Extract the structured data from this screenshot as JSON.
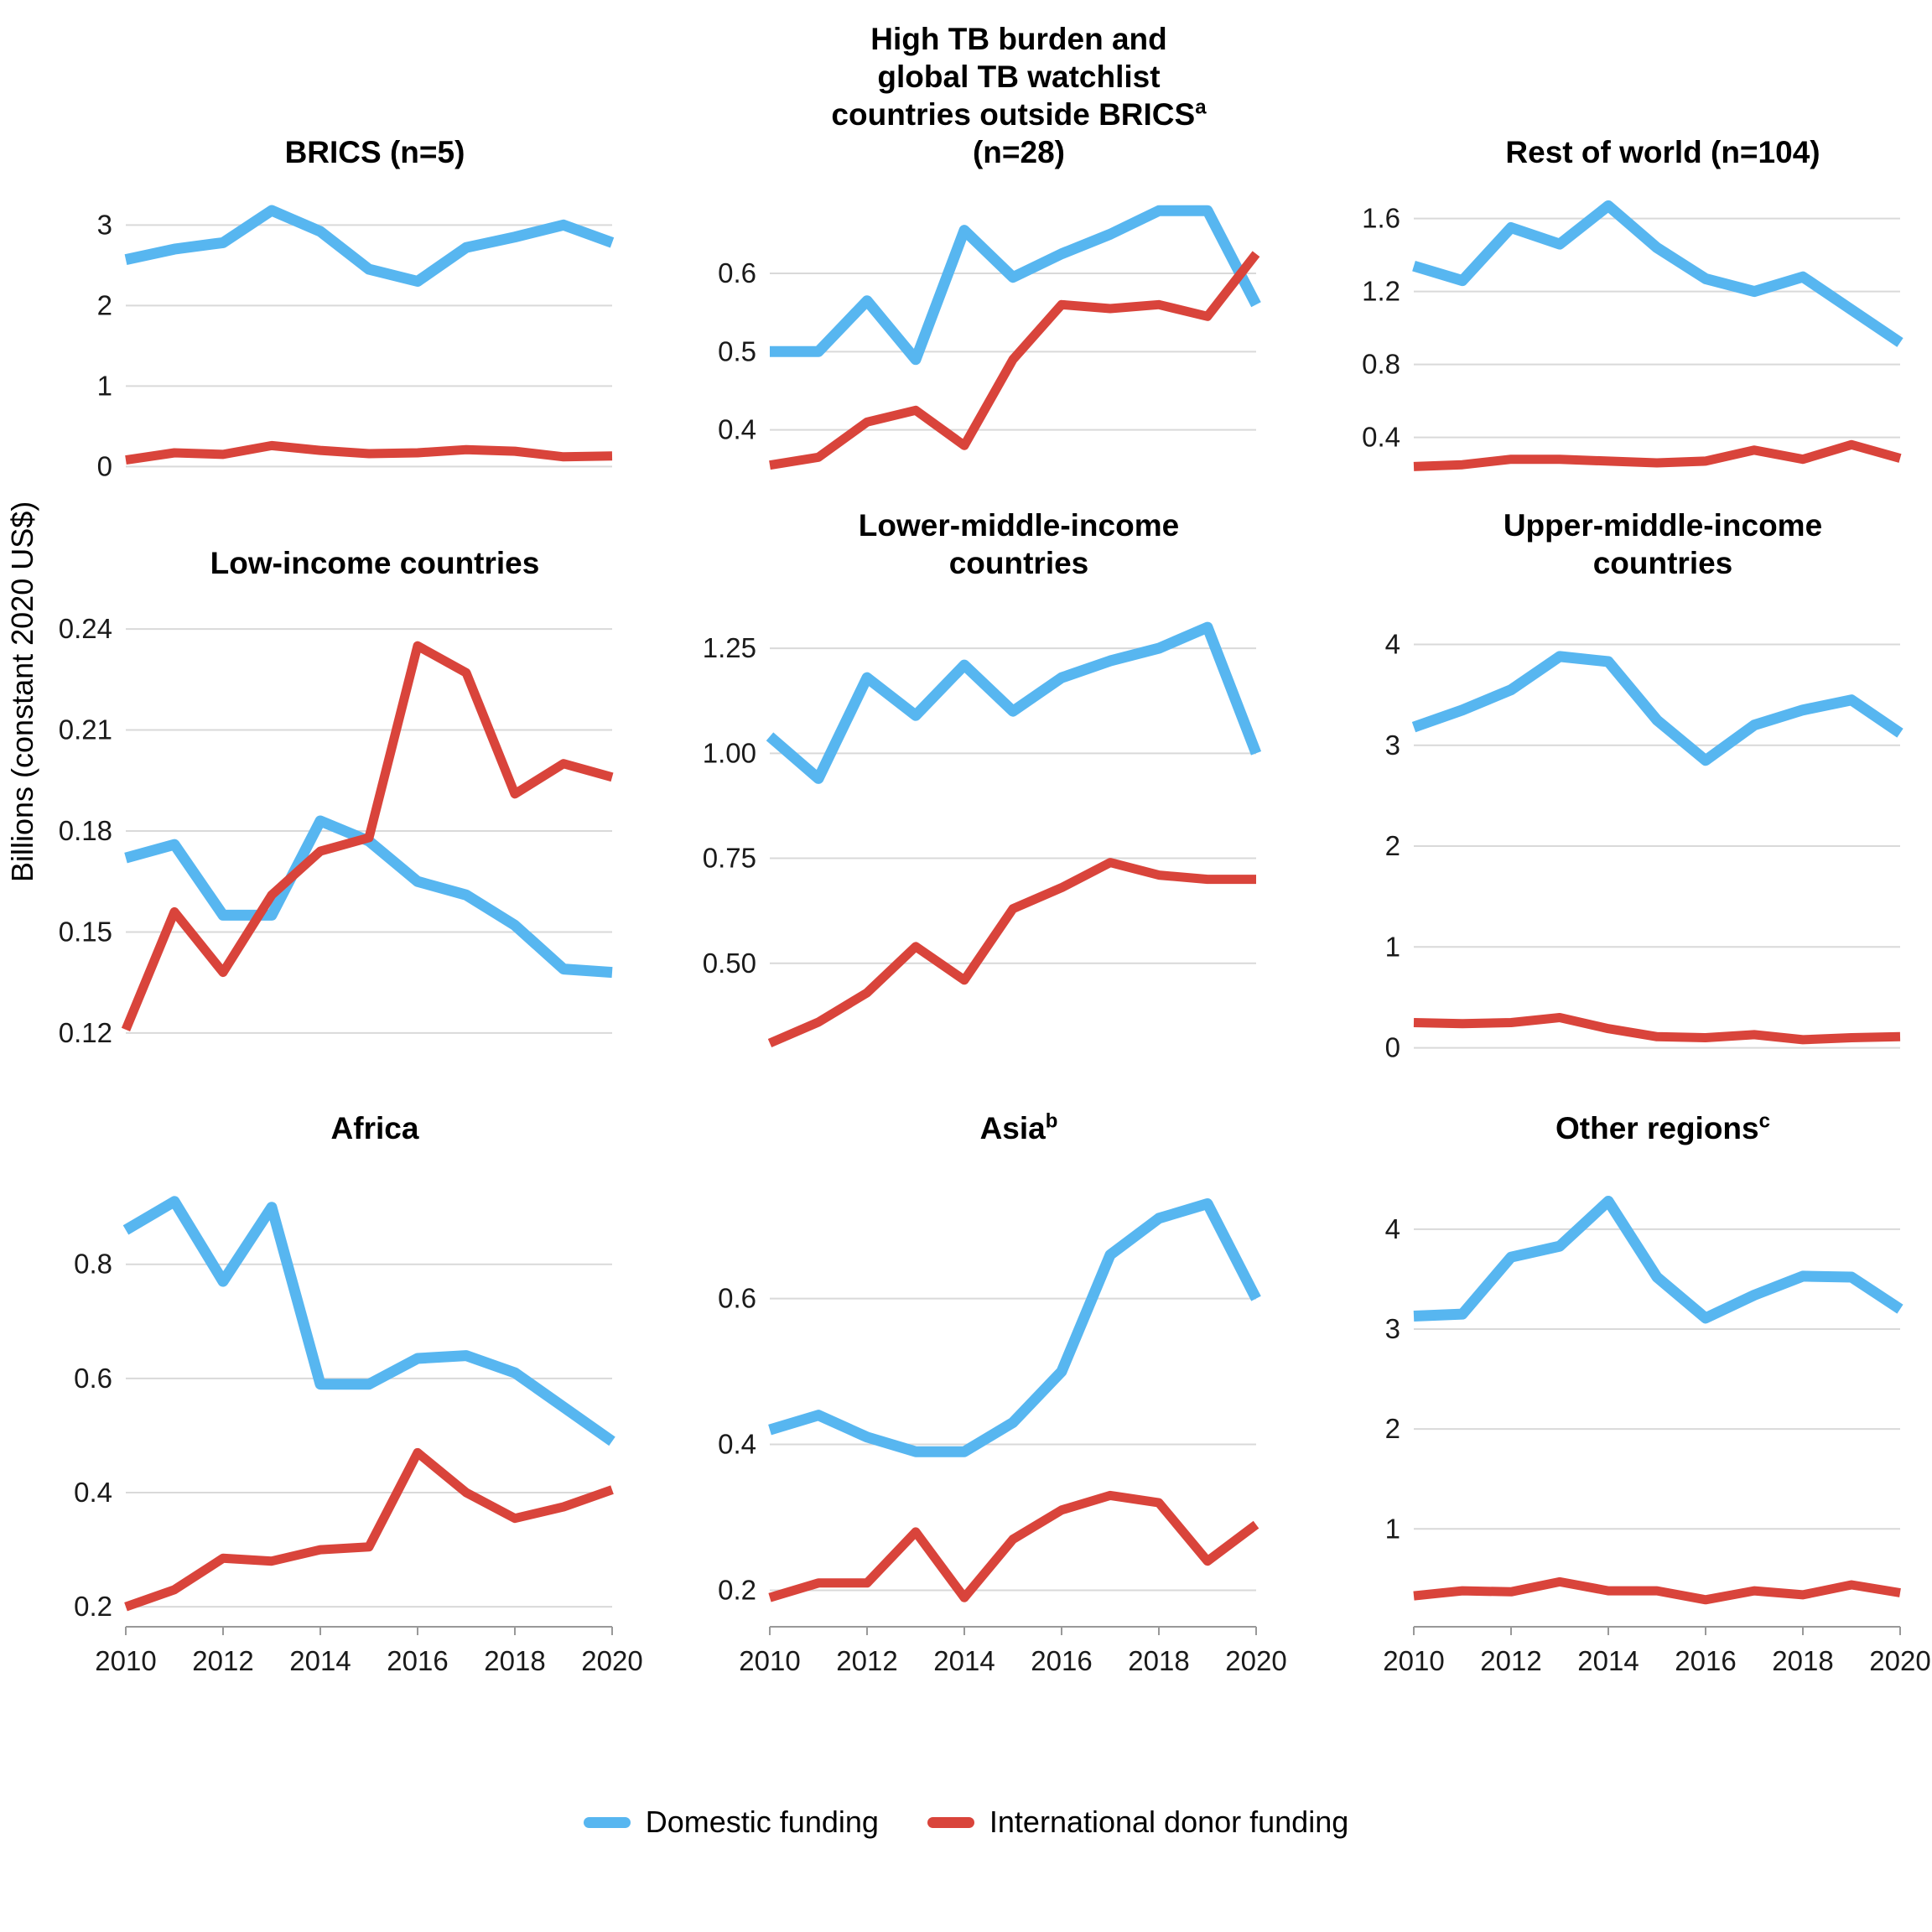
{
  "figure": {
    "y_axis_label": "Billions (constant 2020 US$)"
  },
  "years": [
    2010,
    2011,
    2012,
    2013,
    2014,
    2015,
    2016,
    2017,
    2018,
    2019,
    2020
  ],
  "x_tick_labels": [
    {
      "v": 2010,
      "t": "2010"
    },
    {
      "v": 2012,
      "t": "2012"
    },
    {
      "v": 2014,
      "t": "2014"
    },
    {
      "v": 2016,
      "t": "2016"
    },
    {
      "v": 2018,
      "t": "2018"
    },
    {
      "v": 2020,
      "t": "2020"
    }
  ],
  "legend": [
    {
      "key": "domestic",
      "label": "Domestic funding",
      "color": "#57B6F0",
      "stroke_width": 13
    },
    {
      "key": "donor",
      "label": "International donor funding",
      "color": "#D9443B",
      "stroke_width": 11
    }
  ],
  "grid_color": "#D9D9D9",
  "axis_color": "#999999",
  "chart_data": [
    {
      "id": "brics",
      "type": "line",
      "title": [
        {
          "t": "BRICS (n=5)"
        }
      ],
      "ylim": [
        -0.08,
        3.42
      ],
      "yticks": [
        {
          "v": 0,
          "t": "0"
        },
        {
          "v": 1,
          "t": "1"
        },
        {
          "v": 2,
          "t": "2"
        },
        {
          "v": 3,
          "t": "3"
        }
      ],
      "series": [
        {
          "name": "Domestic funding",
          "values": [
            2.57,
            2.7,
            2.78,
            3.18,
            2.92,
            2.45,
            2.3,
            2.72,
            2.85,
            3.0,
            2.78
          ]
        },
        {
          "name": "International donor funding",
          "values": [
            0.08,
            0.17,
            0.15,
            0.26,
            0.2,
            0.16,
            0.17,
            0.21,
            0.19,
            0.12,
            0.13
          ]
        }
      ]
    },
    {
      "id": "high-tb-watchlist",
      "type": "line",
      "title": [
        {
          "t": "High TB burden and"
        },
        {
          "t": "global TB watchlist"
        },
        {
          "t": "countries outside BRICS",
          "s": "a"
        },
        {
          "t": "(n=28)"
        }
      ],
      "ylim": [
        0.345,
        0.705
      ],
      "yticks": [
        {
          "v": 0.4,
          "t": "0.4"
        },
        {
          "v": 0.5,
          "t": "0.5"
        },
        {
          "v": 0.6,
          "t": "0.6"
        }
      ],
      "series": [
        {
          "name": "Domestic funding",
          "values": [
            0.5,
            0.5,
            0.565,
            0.49,
            0.655,
            0.595,
            0.625,
            0.65,
            0.68,
            0.68,
            0.56
          ]
        },
        {
          "name": "International donor funding",
          "values": [
            0.355,
            0.365,
            0.41,
            0.425,
            0.38,
            0.49,
            0.56,
            0.555,
            0.56,
            0.545,
            0.625
          ]
        }
      ]
    },
    {
      "id": "rest-of-world",
      "type": "line",
      "title": [
        {
          "t": "Rest of world (n=104)"
        }
      ],
      "ylim": [
        0.205,
        1.75
      ],
      "yticks": [
        {
          "v": 0.4,
          "t": "0.4"
        },
        {
          "v": 0.8,
          "t": "0.8"
        },
        {
          "v": 1.2,
          "t": "1.2"
        },
        {
          "v": 1.6,
          "t": "1.6"
        }
      ],
      "series": [
        {
          "name": "Domestic funding",
          "values": [
            1.34,
            1.26,
            1.55,
            1.46,
            1.67,
            1.44,
            1.27,
            1.2,
            1.28,
            1.1,
            0.92
          ]
        },
        {
          "name": "International donor funding",
          "values": [
            0.24,
            0.25,
            0.28,
            0.28,
            0.27,
            0.26,
            0.27,
            0.33,
            0.28,
            0.36,
            0.285
          ]
        }
      ]
    },
    {
      "id": "low-income",
      "type": "line",
      "title": [
        {
          "t": "Low-income countries"
        }
      ],
      "ylim": [
        0.112,
        0.248
      ],
      "yticks": [
        {
          "v": 0.12,
          "t": "0.12"
        },
        {
          "v": 0.15,
          "t": "0.15"
        },
        {
          "v": 0.18,
          "t": "0.18"
        },
        {
          "v": 0.21,
          "t": "0.21"
        },
        {
          "v": 0.24,
          "t": "0.24"
        }
      ],
      "series": [
        {
          "name": "Domestic funding",
          "values": [
            0.172,
            0.176,
            0.155,
            0.155,
            0.183,
            0.177,
            0.165,
            0.161,
            0.152,
            0.139,
            0.138
          ]
        },
        {
          "name": "International donor funding",
          "values": [
            0.121,
            0.156,
            0.138,
            0.161,
            0.174,
            0.178,
            0.235,
            0.227,
            0.191,
            0.2,
            0.196
          ]
        }
      ]
    },
    {
      "id": "lower-middle-income",
      "type": "line",
      "title": [
        {
          "t": "Lower-middle-income"
        },
        {
          "t": "countries"
        }
      ],
      "ylim": [
        0.27,
        1.36
      ],
      "yticks": [
        {
          "v": 0.5,
          "t": "0.50"
        },
        {
          "v": 0.75,
          "t": "0.75"
        },
        {
          "v": 1.0,
          "t": "1.00"
        },
        {
          "v": 1.25,
          "t": "1.25"
        }
      ],
      "series": [
        {
          "name": "Domestic funding",
          "values": [
            1.04,
            0.94,
            1.18,
            1.09,
            1.21,
            1.1,
            1.18,
            1.22,
            1.25,
            1.3,
            1.0
          ]
        },
        {
          "name": "International donor funding",
          "values": [
            0.31,
            0.36,
            0.43,
            0.54,
            0.46,
            0.63,
            0.68,
            0.74,
            0.71,
            0.7,
            0.7
          ]
        }
      ]
    },
    {
      "id": "upper-middle-income",
      "type": "line",
      "title": [
        {
          "t": "Upper-middle-income"
        },
        {
          "t": "countries"
        }
      ],
      "ylim": [
        -0.12,
        4.42
      ],
      "yticks": [
        {
          "v": 0,
          "t": "0"
        },
        {
          "v": 1,
          "t": "1"
        },
        {
          "v": 2,
          "t": "2"
        },
        {
          "v": 3,
          "t": "3"
        },
        {
          "v": 4,
          "t": "4"
        }
      ],
      "series": [
        {
          "name": "Domestic funding",
          "values": [
            3.18,
            3.35,
            3.55,
            3.88,
            3.83,
            3.25,
            2.85,
            3.2,
            3.35,
            3.45,
            3.12
          ]
        },
        {
          "name": "International donor funding",
          "values": [
            0.25,
            0.24,
            0.25,
            0.3,
            0.19,
            0.11,
            0.1,
            0.13,
            0.08,
            0.1,
            0.11
          ]
        }
      ]
    },
    {
      "id": "africa",
      "type": "line",
      "title": [
        {
          "t": "Africa"
        }
      ],
      "ylim": [
        0.165,
        0.97
      ],
      "yticks": [
        {
          "v": 0.2,
          "t": "0.2"
        },
        {
          "v": 0.4,
          "t": "0.4"
        },
        {
          "v": 0.6,
          "t": "0.6"
        },
        {
          "v": 0.8,
          "t": "0.8"
        }
      ],
      "series": [
        {
          "name": "Domestic funding",
          "values": [
            0.86,
            0.91,
            0.77,
            0.9,
            0.59,
            0.59,
            0.635,
            0.64,
            0.61,
            0.55,
            0.49
          ]
        },
        {
          "name": "International donor funding",
          "values": [
            0.2,
            0.23,
            0.285,
            0.28,
            0.3,
            0.305,
            0.47,
            0.4,
            0.355,
            0.375,
            0.405
          ]
        }
      ]
    },
    {
      "id": "asia",
      "type": "line",
      "title": [
        {
          "t": "Asia",
          "s": "b"
        }
      ],
      "ylim": [
        0.15,
        0.78
      ],
      "yticks": [
        {
          "v": 0.2,
          "t": "0.2"
        },
        {
          "v": 0.4,
          "t": "0.4"
        },
        {
          "v": 0.6,
          "t": "0.6"
        }
      ],
      "series": [
        {
          "name": "Domestic funding",
          "values": [
            0.42,
            0.44,
            0.41,
            0.39,
            0.39,
            0.43,
            0.5,
            0.66,
            0.71,
            0.73,
            0.6
          ]
        },
        {
          "name": "International donor funding",
          "values": [
            0.19,
            0.21,
            0.21,
            0.28,
            0.19,
            0.27,
            0.31,
            0.33,
            0.32,
            0.24,
            0.29
          ]
        }
      ]
    },
    {
      "id": "other-regions",
      "type": "line",
      "title": [
        {
          "t": "Other regions",
          "s": "c"
        }
      ],
      "ylim": [
        0.02,
        4.62
      ],
      "yticks": [
        {
          "v": 1,
          "t": "1"
        },
        {
          "v": 2,
          "t": "2"
        },
        {
          "v": 3,
          "t": "3"
        },
        {
          "v": 4,
          "t": "4"
        }
      ],
      "series": [
        {
          "name": "Domestic funding",
          "values": [
            3.13,
            3.15,
            3.72,
            3.83,
            4.28,
            3.52,
            3.11,
            3.34,
            3.53,
            3.52,
            3.2
          ]
        },
        {
          "name": "International donor funding",
          "values": [
            0.33,
            0.38,
            0.37,
            0.47,
            0.38,
            0.38,
            0.29,
            0.38,
            0.34,
            0.44,
            0.36
          ]
        }
      ]
    }
  ]
}
